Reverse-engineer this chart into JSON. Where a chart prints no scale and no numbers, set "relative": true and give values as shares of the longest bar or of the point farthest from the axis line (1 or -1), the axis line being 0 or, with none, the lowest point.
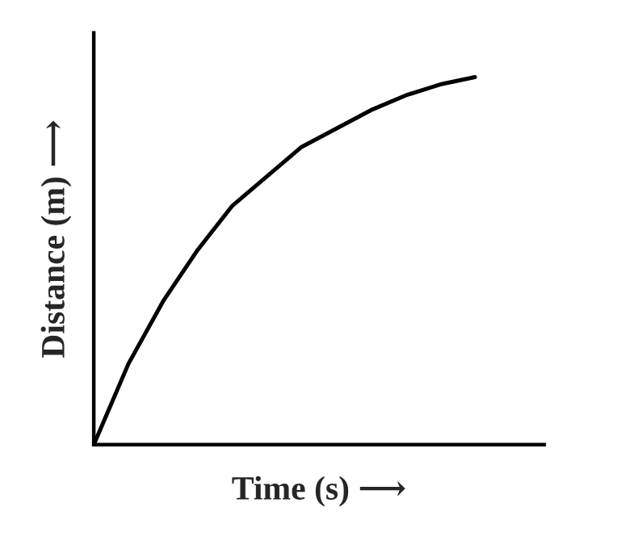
{
  "chart_data": {
    "type": "line",
    "relative": true,
    "xlabel": "Time (s) ⟶",
    "ylabel": "Distance (m) ⟶",
    "categories": [
      null,
      null,
      null,
      null,
      null,
      null,
      null,
      null,
      null,
      null,
      null,
      null,
      null,
      null
    ],
    "series": [
      {
        "color": "#000000",
        "values": [
          0,
          0.22,
          0.39,
          0.53,
          0.65,
          0.73,
          0.81,
          0.86,
          0.91,
          0.95,
          0.98,
          1,
          null,
          null
        ]
      }
    ],
    "marker": "none",
    "line_style": "solid",
    "tick_labels": false
  }
}
